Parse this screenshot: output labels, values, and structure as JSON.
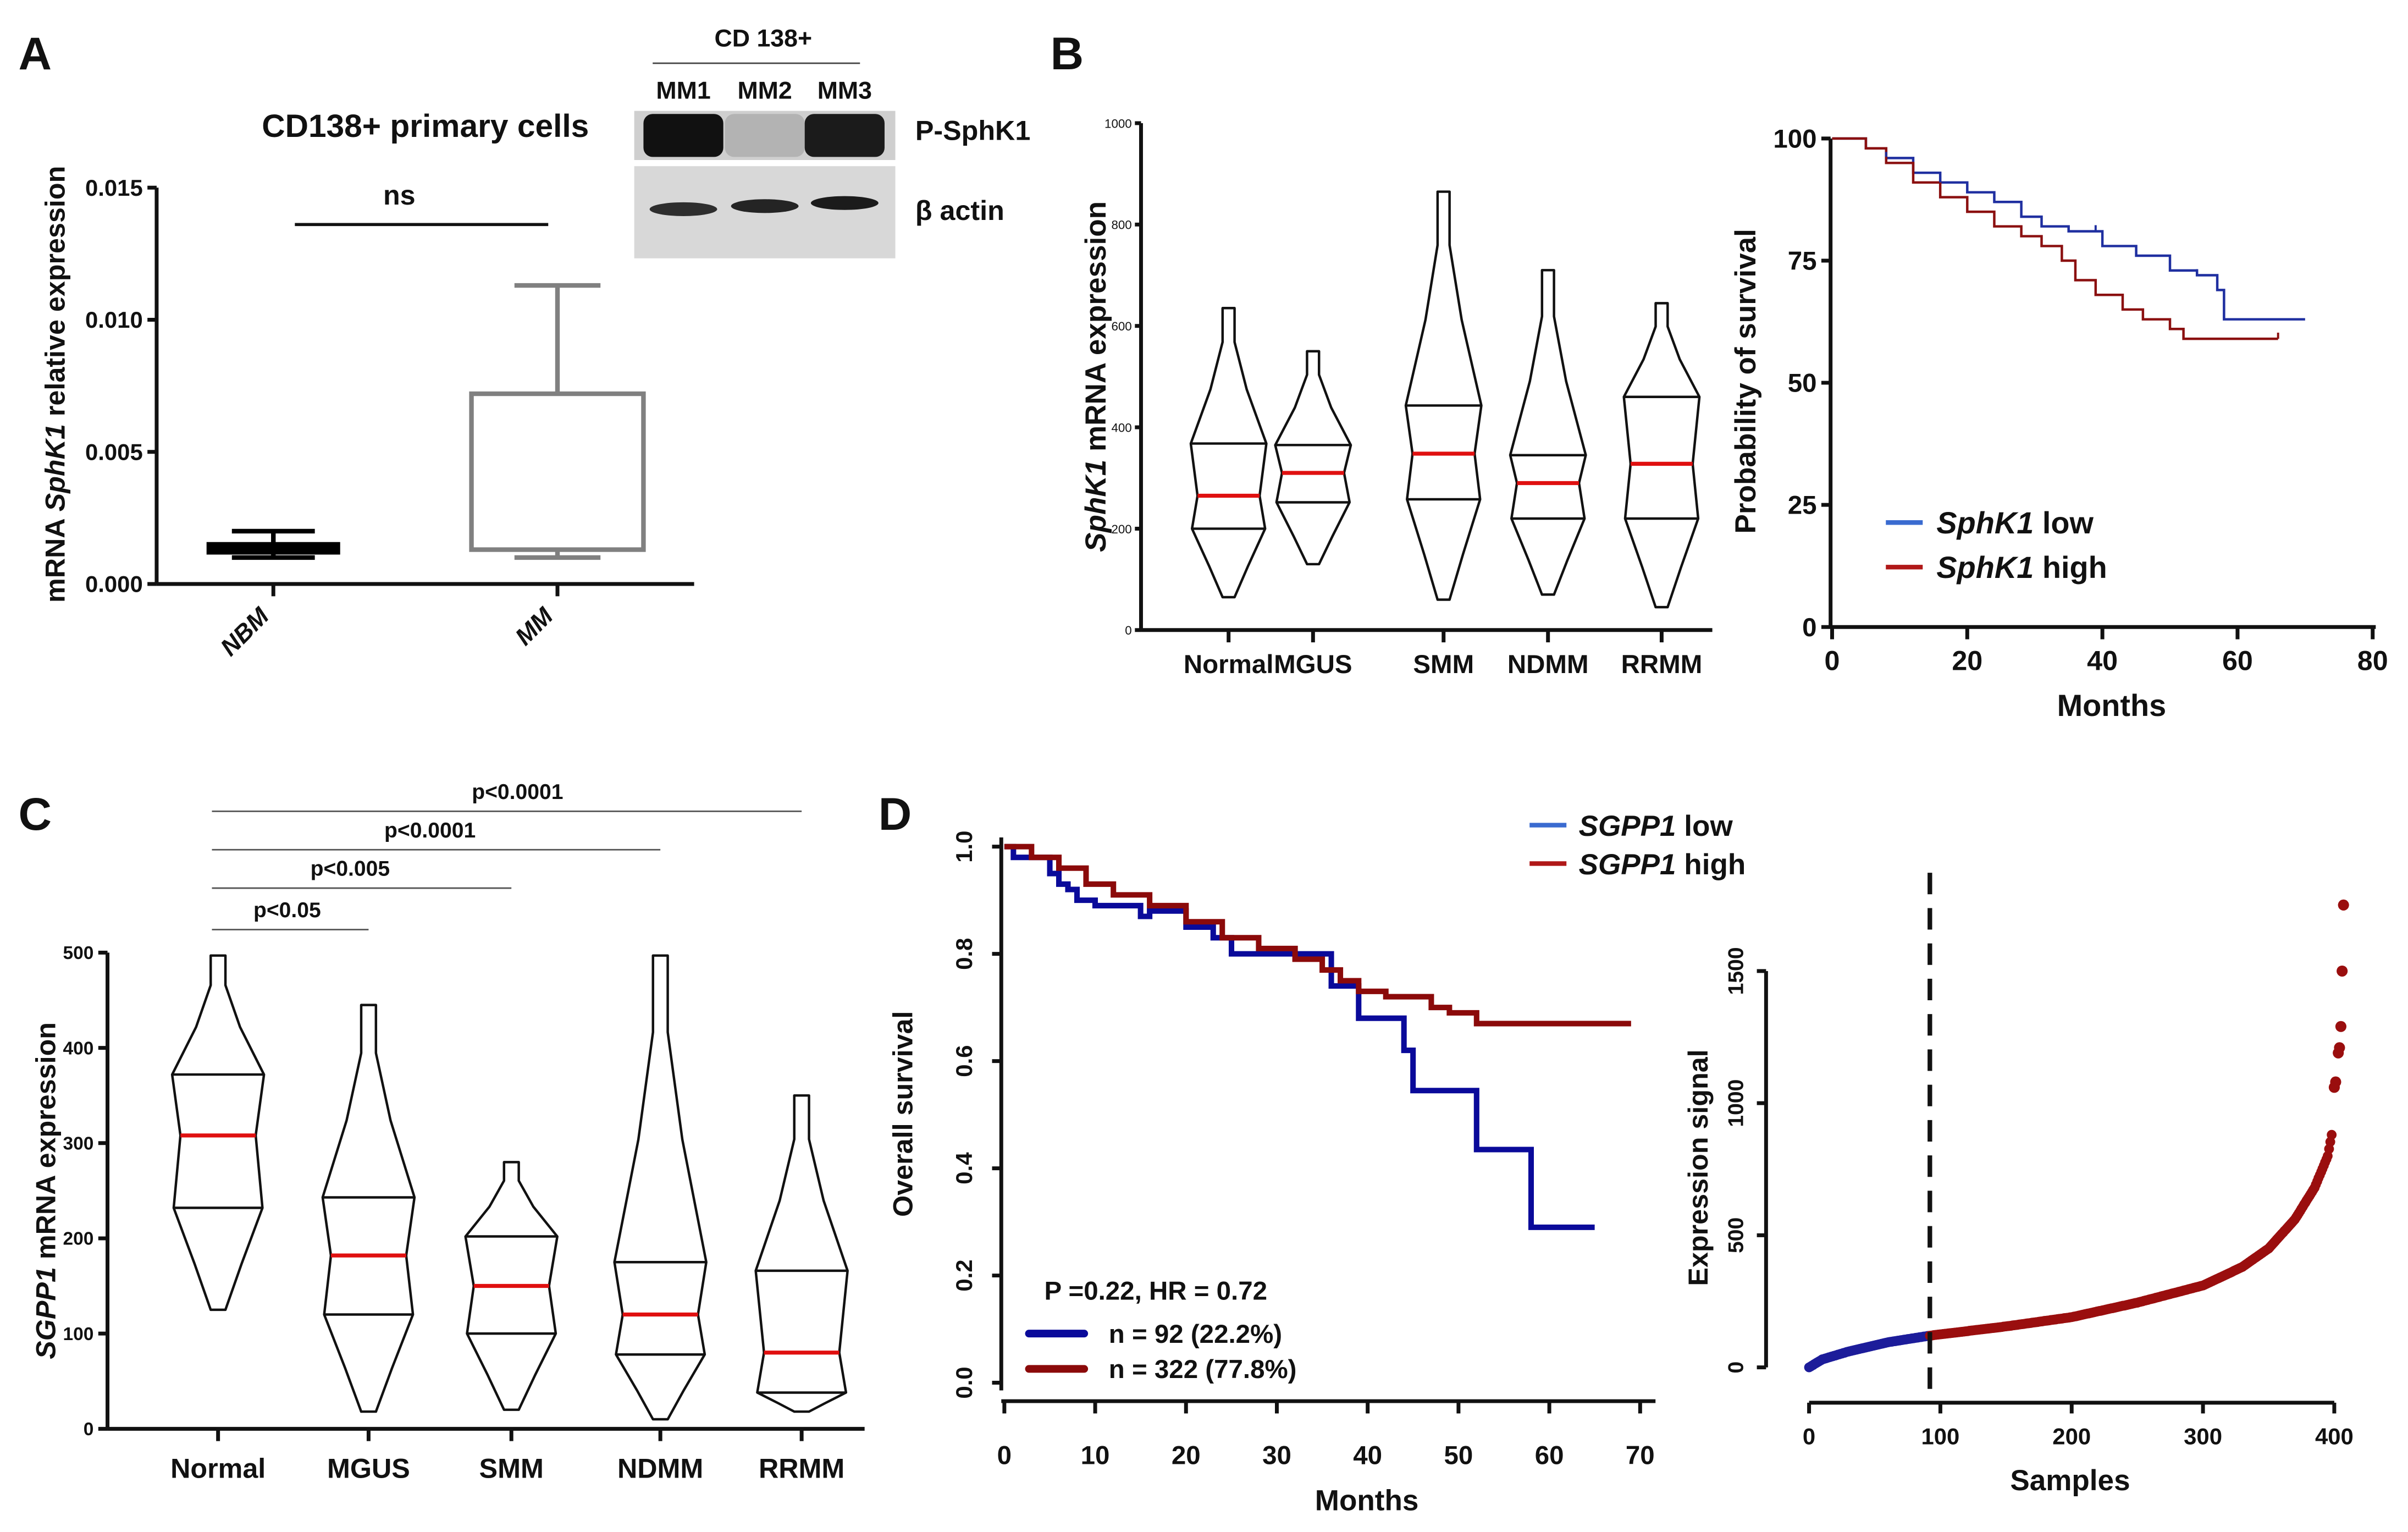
{
  "panels": {
    "A": "A",
    "B": "B",
    "C": "C",
    "D": "D"
  },
  "western_blot": {
    "header": "CD 138+",
    "lanes": [
      "MM1",
      "MM2",
      "MM3"
    ],
    "bands": [
      {
        "label": "P-SphK1",
        "intensities": [
          1.0,
          0.15,
          0.95
        ]
      },
      {
        "label": "β actin",
        "intensities": [
          0.85,
          0.9,
          0.95
        ]
      }
    ]
  },
  "chart_data": [
    {
      "id": "A_box",
      "type": "box",
      "title": "CD138+ primary cells",
      "ylabel": {
        "pre": "mRNA ",
        "gene": "SphK1",
        "post": " relative expression"
      },
      "categories": [
        "NBM",
        "MM"
      ],
      "boxes": [
        {
          "min": 0.001,
          "q1": 0.0012,
          "q3": 0.0015,
          "max": 0.002,
          "color": "#000000",
          "filled": true
        },
        {
          "min": 0.001,
          "q1": 0.0013,
          "q3": 0.0072,
          "max": 0.0113,
          "color": "#808080",
          "filled": false
        }
      ],
      "ylim": [
        0,
        0.015
      ],
      "yticks": [
        0,
        0.005,
        0.01,
        0.015
      ],
      "yticklabels": [
        "0.000",
        "0.005",
        "0.010",
        "0.015"
      ],
      "annotation": "ns"
    },
    {
      "id": "B_violin",
      "type": "violin",
      "ylabel": {
        "gene": "SphK1",
        "post": " mRNA  expression"
      },
      "categories": [
        "Normal",
        "MGUS",
        "SMM",
        "NDMM",
        "RRMM"
      ],
      "stats": [
        {
          "min": 65,
          "q1": 200,
          "median": 265,
          "q3": 368,
          "max": 635
        },
        {
          "min": 130,
          "q1": 252,
          "median": 310,
          "q3": 365,
          "max": 550
        },
        {
          "min": 60,
          "q1": 258,
          "median": 348,
          "q3": 443,
          "max": 865
        },
        {
          "min": 70,
          "q1": 220,
          "median": 290,
          "q3": 345,
          "max": 710
        },
        {
          "min": 45,
          "q1": 220,
          "median": 328,
          "q3": 460,
          "max": 645
        }
      ],
      "ylim": [
        0,
        1000
      ],
      "yticks": [
        0,
        200,
        400,
        600,
        800,
        1000
      ],
      "median_color": "#e01010"
    },
    {
      "id": "B_km",
      "type": "line",
      "ylabel": "Probability  of survival",
      "xlabel": "Months",
      "xlim": [
        0,
        80
      ],
      "ylim": [
        0,
        100
      ],
      "xticks": [
        0,
        20,
        40,
        60,
        80
      ],
      "yticks": [
        0,
        25,
        50,
        75,
        100
      ],
      "legend": "bottom-left",
      "series": [
        {
          "name": "low",
          "gene": "SphK1",
          "color": "#1f2fa0",
          "legend_color": "#3a6bd0",
          "points": [
            [
              0,
              100
            ],
            [
              5,
              98
            ],
            [
              8,
              96
            ],
            [
              12,
              93
            ],
            [
              16,
              91
            ],
            [
              20,
              89
            ],
            [
              24,
              87
            ],
            [
              28,
              84
            ],
            [
              31,
              82
            ],
            [
              35,
              81
            ],
            [
              39,
              81
            ],
            [
              40,
              78
            ],
            [
              45,
              76
            ],
            [
              50,
              73
            ],
            [
              54,
              72
            ],
            [
              57,
              69
            ],
            [
              58,
              63
            ],
            [
              70,
              63
            ]
          ]
        },
        {
          "name": "high",
          "gene": "SphK1",
          "color": "#8b1010",
          "legend_color": "#b01818",
          "points": [
            [
              0,
              100
            ],
            [
              5,
              98
            ],
            [
              8,
              95
            ],
            [
              12,
              91
            ],
            [
              16,
              88
            ],
            [
              20,
              85
            ],
            [
              24,
              82
            ],
            [
              28,
              80
            ],
            [
              31,
              78
            ],
            [
              34,
              75
            ],
            [
              36,
              71
            ],
            [
              39,
              68
            ],
            [
              43,
              65
            ],
            [
              46,
              63
            ],
            [
              50,
              61
            ],
            [
              52,
              59
            ],
            [
              66,
              59
            ]
          ]
        }
      ]
    },
    {
      "id": "C_violin",
      "type": "violin",
      "ylabel": {
        "gene": "SGPP1",
        "post": " mRNA expression"
      },
      "categories": [
        "Normal",
        "MGUS",
        "SMM",
        "NDMM",
        "RRMM"
      ],
      "stats": [
        {
          "min": 125,
          "q1": 232,
          "median": 308,
          "q3": 372,
          "max": 497
        },
        {
          "min": 18,
          "q1": 120,
          "median": 182,
          "q3": 243,
          "max": 445
        },
        {
          "min": 20,
          "q1": 100,
          "median": 150,
          "q3": 202,
          "max": 280
        },
        {
          "min": 10,
          "q1": 78,
          "median": 120,
          "q3": 175,
          "max": 497
        },
        {
          "min": 18,
          "q1": 38,
          "median": 80,
          "q3": 166,
          "max": 350
        }
      ],
      "ylim": [
        0,
        500
      ],
      "yticks": [
        0,
        100,
        200,
        300,
        400,
        500
      ],
      "median_color": "#e01010",
      "comparisons": [
        {
          "from": "Normal",
          "to": "MGUS",
          "label": "p<0.05"
        },
        {
          "from": "Normal",
          "to": "SMM",
          "label": "p<0.005"
        },
        {
          "from": "Normal",
          "to": "NDMM",
          "label": "p<0.0001"
        },
        {
          "from": "Normal",
          "to": "RRMM",
          "label": "p<0.0001"
        }
      ]
    },
    {
      "id": "D_km",
      "type": "line",
      "ylabel": "Overall survival",
      "xlabel": "Months",
      "xlim": [
        0,
        70
      ],
      "ylim": [
        0,
        1
      ],
      "xticks": [
        0,
        10,
        20,
        30,
        40,
        50,
        60,
        70
      ],
      "yticks": [
        0,
        0.2,
        0.4,
        0.6,
        0.8,
        1.0
      ],
      "yticklabels": [
        "0.0",
        "0.2",
        "0.4",
        "0.6",
        "0.8",
        "1.0"
      ],
      "stats_text": "P =0.22, HR = 0.72",
      "series": [
        {
          "name": "low",
          "gene": "SGPP1",
          "color": "#0a0a9a",
          "legend_color": "#3a6bd0",
          "n_label": "n = 92 (22.2%)",
          "points": [
            [
              0,
              1.0
            ],
            [
              1,
              0.98
            ],
            [
              5,
              0.95
            ],
            [
              6,
              0.93
            ],
            [
              7,
              0.92
            ],
            [
              8,
              0.9
            ],
            [
              10,
              0.89
            ],
            [
              15,
              0.87
            ],
            [
              16,
              0.88
            ],
            [
              20,
              0.85
            ],
            [
              23,
              0.83
            ],
            [
              25,
              0.8
            ],
            [
              36,
              0.74
            ],
            [
              39,
              0.68
            ],
            [
              44,
              0.62
            ],
            [
              45,
              0.545
            ],
            [
              52,
              0.435
            ],
            [
              58,
              0.29
            ],
            [
              65,
              0.29
            ]
          ]
        },
        {
          "name": "high",
          "gene": "SGPP1",
          "color": "#8b0a0a",
          "legend_color": "#b01818",
          "n_label": "n = 322 (77.8%)",
          "points": [
            [
              0,
              1.0
            ],
            [
              3,
              0.98
            ],
            [
              6,
              0.96
            ],
            [
              9,
              0.93
            ],
            [
              12,
              0.91
            ],
            [
              16,
              0.89
            ],
            [
              20,
              0.86
            ],
            [
              24,
              0.83
            ],
            [
              28,
              0.81
            ],
            [
              32,
              0.79
            ],
            [
              35,
              0.77
            ],
            [
              37,
              0.75
            ],
            [
              39,
              0.73
            ],
            [
              42,
              0.72
            ],
            [
              47,
              0.7
            ],
            [
              49,
              0.69
            ],
            [
              52,
              0.67
            ],
            [
              69,
              0.67
            ]
          ]
        }
      ]
    },
    {
      "id": "D_scatter",
      "type": "scatter",
      "ylabel": "Expression signal",
      "xlabel": "Samples",
      "xlim": [
        0,
        410
      ],
      "ylim": [
        0,
        1800
      ],
      "xticks": [
        0,
        100,
        200,
        300,
        400
      ],
      "yticks": [
        0,
        500,
        1000,
        1500
      ],
      "cutoff_sample": 92,
      "n_samples": 414,
      "low_color": "#1c1c9a",
      "high_color": "#9a0e0e",
      "quantile_knots": [
        [
          0,
          0
        ],
        [
          10,
          30
        ],
        [
          30,
          60
        ],
        [
          60,
          95
        ],
        [
          92,
          120
        ],
        [
          150,
          155
        ],
        [
          200,
          190
        ],
        [
          250,
          245
        ],
        [
          300,
          310
        ],
        [
          330,
          380
        ],
        [
          350,
          450
        ],
        [
          370,
          560
        ],
        [
          385,
          680
        ],
        [
          395,
          800
        ],
        [
          398,
          880
        ]
      ],
      "outliers": [
        [
          400,
          1060
        ],
        [
          401,
          1080
        ],
        [
          403,
          1190
        ],
        [
          404,
          1210
        ],
        [
          405,
          1290
        ],
        [
          406,
          1500
        ],
        [
          407,
          1750
        ]
      ]
    }
  ]
}
